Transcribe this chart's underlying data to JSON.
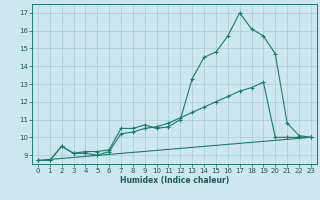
{
  "xlabel": "Humidex (Indice chaleur)",
  "bg_color": "#cce8ec",
  "grid_color": "#aaccd4",
  "line_color": "#1a7a6e",
  "xlim": [
    -0.5,
    23.5
  ],
  "ylim": [
    8.5,
    17.5
  ],
  "xticks": [
    0,
    1,
    2,
    3,
    4,
    5,
    6,
    7,
    8,
    9,
    10,
    11,
    12,
    13,
    14,
    15,
    16,
    17,
    18,
    19,
    20,
    21,
    22,
    23
  ],
  "yticks": [
    9,
    10,
    11,
    12,
    13,
    14,
    15,
    16,
    17
  ],
  "curve1_x": [
    0,
    1,
    2,
    3,
    4,
    5,
    6,
    7,
    8,
    9,
    10,
    11,
    12,
    13,
    14,
    15,
    16,
    17,
    18,
    19,
    20,
    21,
    22,
    23
  ],
  "curve1_y": [
    8.7,
    8.7,
    9.5,
    9.1,
    9.2,
    9.2,
    9.3,
    10.5,
    10.5,
    10.7,
    10.5,
    10.6,
    11.0,
    13.3,
    14.5,
    14.8,
    15.7,
    17.0,
    16.1,
    15.7,
    14.7,
    10.8,
    10.1,
    10.0
  ],
  "curve2_x": [
    0,
    1,
    2,
    3,
    4,
    5,
    6,
    7,
    8,
    9,
    10,
    11,
    12,
    13,
    14,
    15,
    16,
    17,
    18,
    19,
    20,
    21,
    22,
    23
  ],
  "curve2_y": [
    8.7,
    8.7,
    9.5,
    9.1,
    9.1,
    9.0,
    9.2,
    10.2,
    10.3,
    10.5,
    10.6,
    10.8,
    11.1,
    11.4,
    11.7,
    12.0,
    12.3,
    12.6,
    12.8,
    13.1,
    10.0,
    10.0,
    10.0,
    10.0
  ],
  "curve3_x": [
    0,
    23
  ],
  "curve3_y": [
    8.7,
    10.0
  ],
  "xlabel_fontsize": 5.5,
  "tick_fontsize": 5.0
}
